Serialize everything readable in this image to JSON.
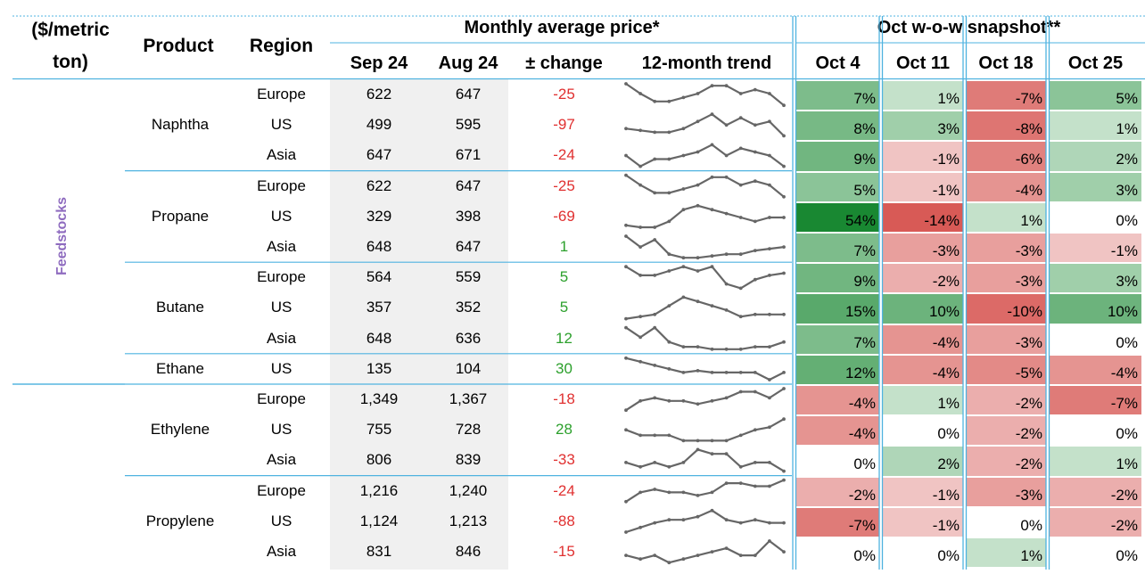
{
  "header": {
    "unit_line1": "($/metric",
    "unit_line2": "ton)",
    "product": "Product",
    "region": "Region",
    "monthly_group": "Monthly average price*",
    "sep": "Sep 24",
    "aug": "Aug 24",
    "change": "± change",
    "trend": "12-month trend",
    "snapshot_group": "Oct w-o-w snapshot**",
    "weeks": [
      "Oct 4",
      "Oct 11",
      "Oct 18",
      "Oct 25"
    ]
  },
  "groups": [
    {
      "label": "Feedstocks",
      "color": "#8e6bbf"
    }
  ],
  "products": [
    {
      "name": "Naphtha",
      "start": 0,
      "count": 3
    },
    {
      "name": "Propane",
      "start": 3,
      "count": 3
    },
    {
      "name": "Butane",
      "start": 6,
      "count": 3
    },
    {
      "name": "Ethane",
      "start": 9,
      "count": 1
    },
    {
      "name": "Ethylene",
      "start": 10,
      "count": 3
    },
    {
      "name": "Propylene",
      "start": 13,
      "count": 3
    }
  ],
  "rows": [
    {
      "region": "Europe",
      "sep": "622",
      "aug": "647",
      "change": "-25",
      "weeks": [
        "7%",
        "1%",
        "-7%",
        "5%"
      ],
      "wv": [
        7,
        1,
        -7,
        5
      ],
      "trend": [
        9.5,
        7,
        5,
        5,
        6,
        7,
        9,
        9,
        7,
        8,
        7,
        4
      ]
    },
    {
      "region": "US",
      "sep": "499",
      "aug": "595",
      "change": "-97",
      "weeks": [
        "8%",
        "3%",
        "-8%",
        "1%"
      ],
      "wv": [
        8,
        3,
        -8,
        1
      ],
      "trend": [
        5,
        4.5,
        4,
        4,
        5,
        7,
        9,
        6,
        8,
        6,
        7,
        3
      ]
    },
    {
      "region": "Asia",
      "sep": "647",
      "aug": "671",
      "change": "-24",
      "weeks": [
        "9%",
        "-1%",
        "-6%",
        "2%"
      ],
      "wv": [
        9,
        -1,
        -6,
        2
      ],
      "trend": [
        6,
        3,
        5,
        5,
        6,
        7,
        9,
        6,
        8,
        7,
        6,
        3
      ]
    },
    {
      "region": "Europe",
      "sep": "622",
      "aug": "647",
      "change": "-25",
      "weeks": [
        "5%",
        "-1%",
        "-4%",
        "3%"
      ],
      "wv": [
        5,
        -1,
        -4,
        3
      ],
      "trend": [
        9.5,
        7,
        5,
        5,
        6,
        7,
        9,
        9,
        7,
        8,
        7,
        4
      ]
    },
    {
      "region": "US",
      "sep": "329",
      "aug": "398",
      "change": "-69",
      "weeks": [
        "54%",
        "-14%",
        "1%",
        "0%"
      ],
      "wv": [
        54,
        -14,
        1,
        0
      ],
      "trend": [
        4,
        3.5,
        3.5,
        5,
        8,
        9,
        8,
        7,
        6,
        5,
        6,
        6
      ]
    },
    {
      "region": "Asia",
      "sep": "648",
      "aug": "647",
      "change": "1",
      "weeks": [
        "7%",
        "-3%",
        "-3%",
        "-1%"
      ],
      "wv": [
        7,
        -3,
        -3,
        -1
      ],
      "trend": [
        9,
        6,
        8,
        4,
        3,
        3,
        3.5,
        4,
        4,
        5,
        5.5,
        6
      ]
    },
    {
      "region": "Europe",
      "sep": "564",
      "aug": "559",
      "change": "5",
      "weeks": [
        "9%",
        "-2%",
        "-3%",
        "3%"
      ],
      "wv": [
        9,
        -2,
        -3,
        3
      ],
      "trend": [
        8,
        6,
        6,
        7,
        8,
        7,
        8,
        4,
        3,
        5,
        6,
        6.5
      ]
    },
    {
      "region": "US",
      "sep": "357",
      "aug": "352",
      "change": "5",
      "weeks": [
        "15%",
        "10%",
        "-10%",
        "10%"
      ],
      "wv": [
        15,
        10,
        -10,
        10
      ],
      "trend": [
        4,
        4.5,
        5,
        7,
        9,
        8,
        7,
        6,
        4.5,
        5,
        5,
        5
      ]
    },
    {
      "region": "Asia",
      "sep": "648",
      "aug": "636",
      "change": "12",
      "weeks": [
        "7%",
        "-4%",
        "-3%",
        "0%"
      ],
      "wv": [
        7,
        -4,
        -3,
        0
      ],
      "trend": [
        8,
        6,
        8,
        5,
        4,
        4,
        3.5,
        3.5,
        3.5,
        4,
        4,
        5
      ]
    },
    {
      "region": "US",
      "sep": "135",
      "aug": "104",
      "change": "30",
      "weeks": [
        "12%",
        "-4%",
        "-5%",
        "-4%"
      ],
      "wv": [
        12,
        -4,
        -5,
        -4
      ],
      "trend": [
        9,
        8,
        7,
        6,
        5,
        5.5,
        5,
        5,
        5,
        5,
        3,
        5
      ]
    },
    {
      "region": "Europe",
      "sep": "1,349",
      "aug": "1,367",
      "change": "-18",
      "weeks": [
        "-4%",
        "1%",
        "-2%",
        "-7%"
      ],
      "wv": [
        -4,
        1,
        -2,
        -7
      ],
      "trend": [
        3,
        6,
        7,
        6,
        6,
        5,
        6,
        7,
        9,
        9,
        7,
        10
      ]
    },
    {
      "region": "US",
      "sep": "755",
      "aug": "728",
      "change": "28",
      "weeks": [
        "-4%",
        "0%",
        "-2%",
        "0%"
      ],
      "wv": [
        -4,
        0,
        -2,
        0
      ],
      "trend": [
        8,
        7,
        7,
        7,
        6,
        6,
        6,
        6,
        7,
        8,
        8.5,
        10
      ]
    },
    {
      "region": "Asia",
      "sep": "806",
      "aug": "839",
      "change": "-33",
      "weeks": [
        "0%",
        "2%",
        "-2%",
        "1%"
      ],
      "wv": [
        0,
        2,
        -2,
        1
      ],
      "trend": [
        5,
        4,
        5,
        4,
        5,
        8,
        7,
        7,
        4,
        5,
        5,
        3
      ]
    },
    {
      "region": "Europe",
      "sep": "1,216",
      "aug": "1,240",
      "change": "-24",
      "weeks": [
        "-2%",
        "-1%",
        "-3%",
        "-2%"
      ],
      "wv": [
        -2,
        -1,
        -3,
        -2
      ],
      "trend": [
        3,
        6,
        7,
        6,
        6,
        5,
        6,
        9,
        9,
        8,
        8,
        10
      ]
    },
    {
      "region": "US",
      "sep": "1,124",
      "aug": "1,213",
      "change": "-88",
      "weeks": [
        "-7%",
        "-1%",
        "0%",
        "-2%"
      ],
      "wv": [
        -7,
        -1,
        0,
        -2
      ],
      "trend": [
        2,
        3.5,
        5,
        6,
        6,
        7,
        9,
        6,
        5,
        6,
        5,
        5
      ]
    },
    {
      "region": "Asia",
      "sep": "831",
      "aug": "846",
      "change": "-15",
      "weeks": [
        "0%",
        "0%",
        "1%",
        "0%"
      ],
      "wv": [
        0,
        0,
        1,
        0
      ],
      "trend": [
        4,
        3,
        4,
        2,
        3,
        4,
        5,
        6,
        4,
        4,
        8,
        5
      ]
    }
  ]
}
